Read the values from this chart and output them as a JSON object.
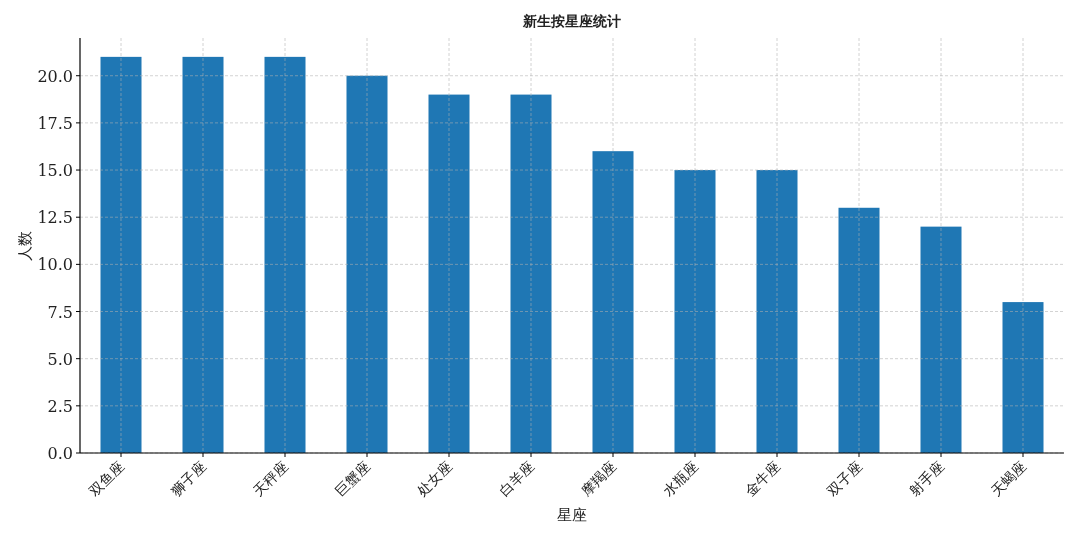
{
  "chart_data": {
    "type": "bar",
    "title": "新生按星座统计",
    "xlabel": "星座",
    "ylabel": "人数",
    "categories": [
      "双鱼座",
      "狮子座",
      "天秤座",
      "巨蟹座",
      "处女座",
      "白羊座",
      "摩羯座",
      "水瓶座",
      "金牛座",
      "双子座",
      "射手座",
      "天蝎座"
    ],
    "values": [
      21,
      21,
      21,
      20,
      19,
      19,
      16,
      15,
      15,
      13,
      12,
      8
    ],
    "color": "#1f77b4",
    "ylim": [
      0,
      22
    ],
    "yticks": [
      {
        "value": 0,
        "label": "0.0"
      },
      {
        "value": 2.5,
        "label": "2.5"
      },
      {
        "value": 5,
        "label": "5.0"
      },
      {
        "value": 7.5,
        "label": "7.5"
      },
      {
        "value": 10,
        "label": "10.0"
      },
      {
        "value": 12.5,
        "label": "12.5"
      },
      {
        "value": 15,
        "label": "15.0"
      },
      {
        "value": 17.5,
        "label": "17.5"
      },
      {
        "value": 20,
        "label": "20.0"
      }
    ],
    "grid": true
  }
}
